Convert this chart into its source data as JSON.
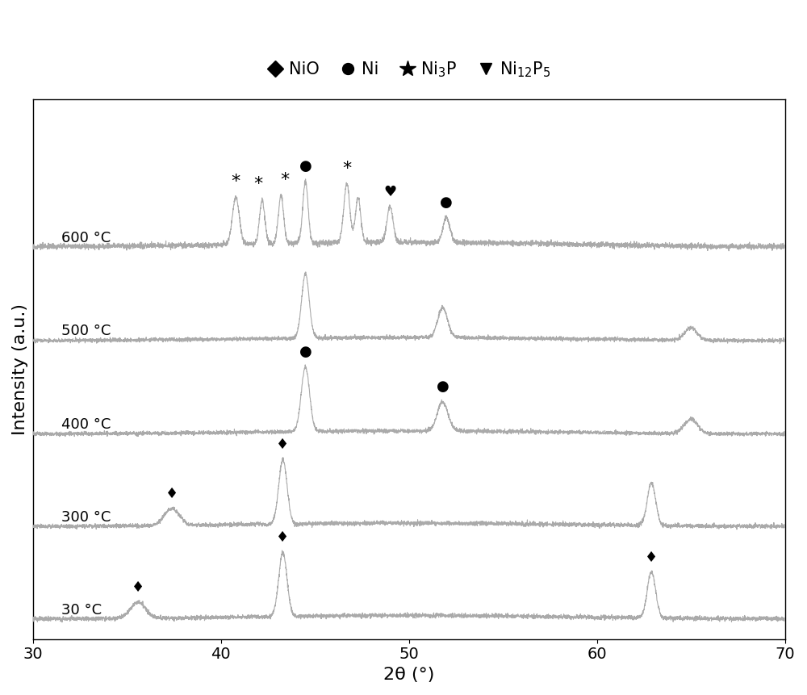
{
  "xlabel": "2θ (°)",
  "ylabel": "Intensity (a.u.)",
  "xlim": [
    30,
    70
  ],
  "xticks": [
    30,
    40,
    50,
    60,
    70
  ],
  "line_color": "#aaaaaa",
  "background_color": "#ffffff",
  "temperatures": [
    "30 °C",
    "300 °C",
    "400 °C",
    "500 °C",
    "600 °C"
  ],
  "offsets": [
    0.0,
    1.1,
    2.2,
    3.3,
    4.4
  ],
  "font_size_label": 16,
  "font_size_tick": 14,
  "font_size_legend": 15,
  "ylim": [
    -0.2,
    6.2
  ],
  "noise_std": 0.012,
  "peak_scale": 0.85
}
